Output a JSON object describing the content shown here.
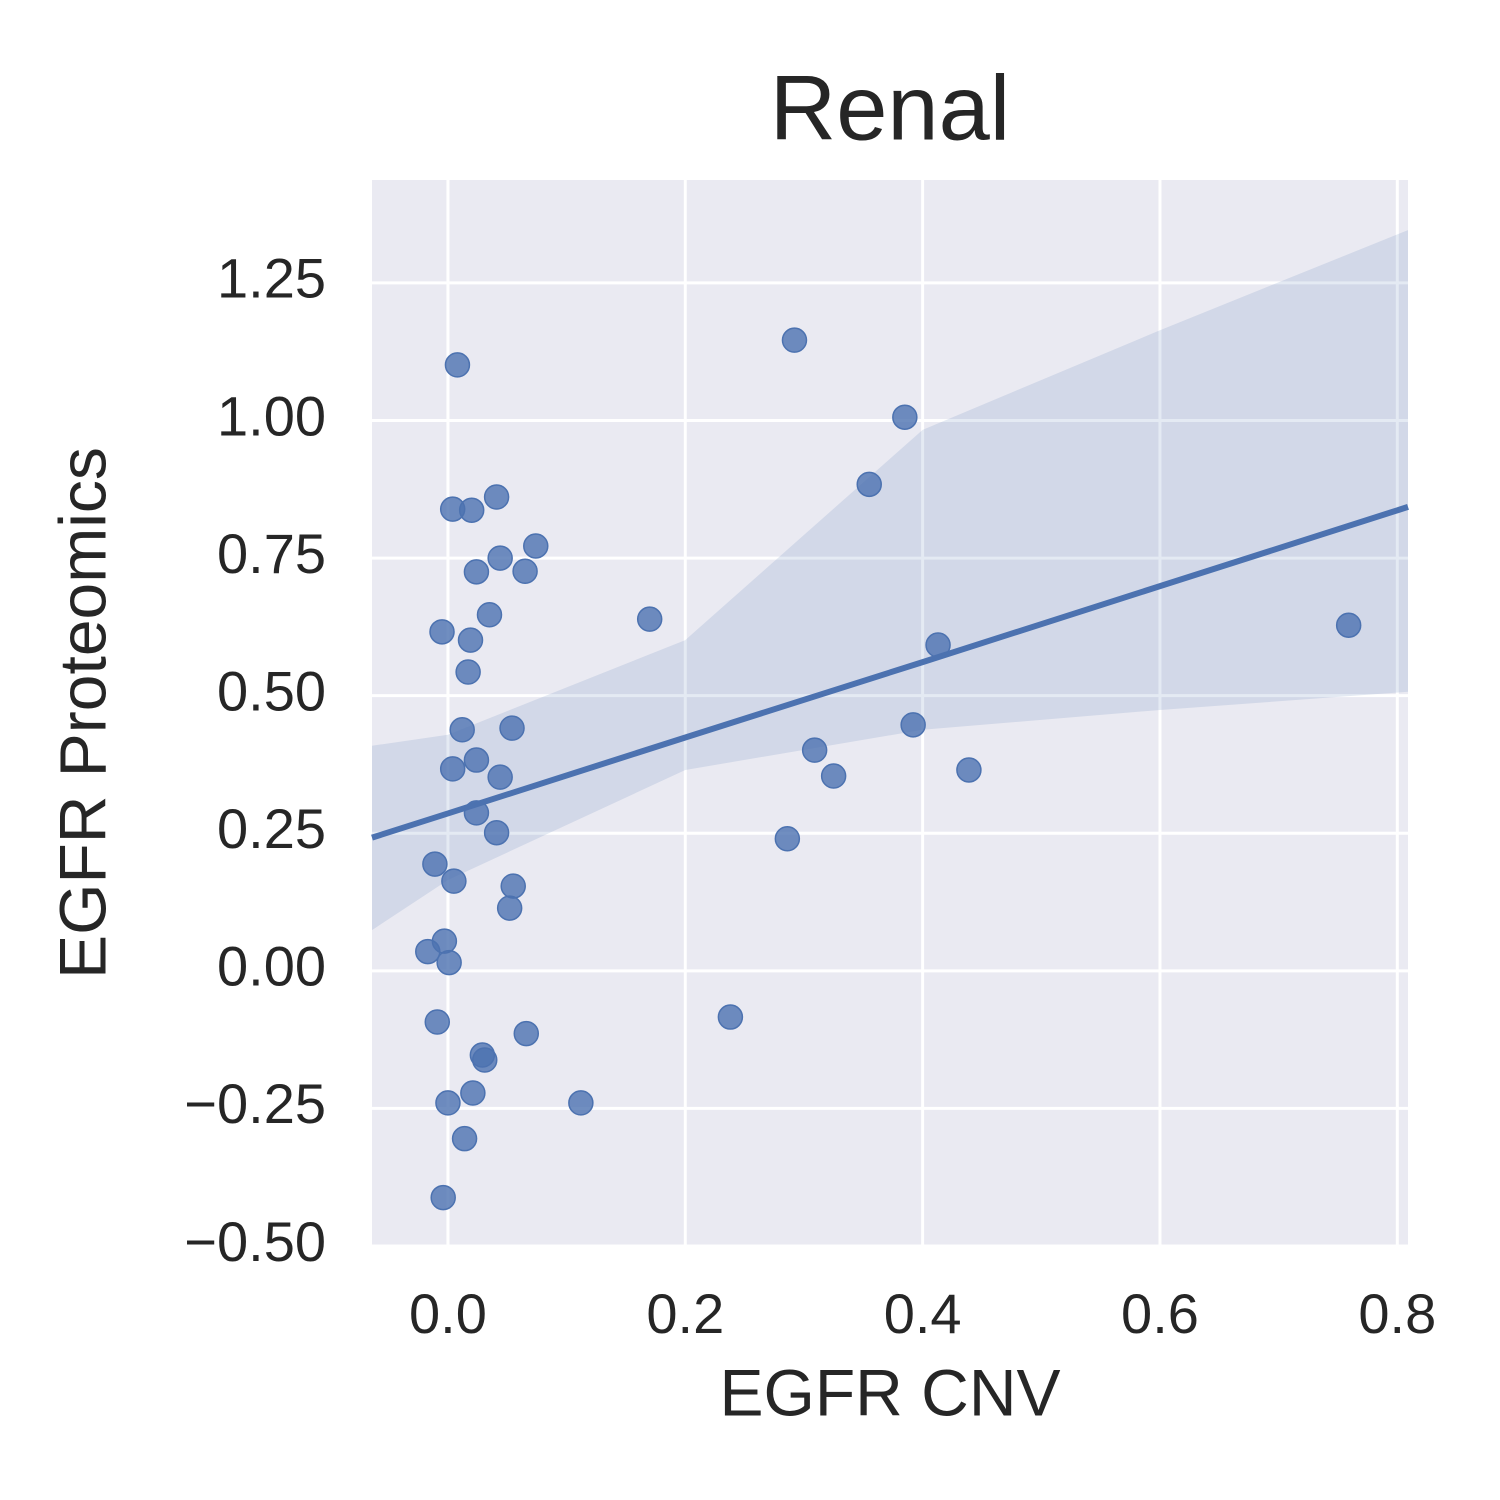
{
  "chart_data": {
    "type": "scatter",
    "title": "Renal",
    "x_label": "EGFR CNV",
    "y_label": "EGFR Proteomics",
    "color": "#4c72b0",
    "grid": true,
    "xlim": [
      -0.064,
      0.809
    ],
    "ylim": [
      -0.5,
      1.437
    ],
    "xticks": [
      {
        "value": 0,
        "label": "0.0"
      },
      0.2,
      0.4,
      0.6,
      0.8
    ],
    "yticks": [
      {
        "value": -0.5,
        "label": "−0.50"
      },
      {
        "value": -0.25,
        "label": "−0.25"
      },
      {
        "value": 0,
        "label": "0.00"
      },
      0.25,
      {
        "value": 0.5,
        "label": "0.50"
      },
      0.75,
      {
        "value": 1,
        "label": "1.00"
      },
      1.25
    ],
    "x": [
      0.008,
      0.292,
      0.385,
      0.355,
      0.004,
      0.02,
      0.041,
      0.044,
      0.074,
      0.024,
      0.065,
      0.035,
      0.17,
      0.759,
      -0.005,
      0.019,
      0.017,
      0.413,
      0.012,
      0.054,
      0.392,
      0.309,
      0.024,
      0.004,
      0.044,
      0.325,
      0.439,
      0.024,
      0.041,
      0.286,
      -0.011,
      0.005,
      0.055,
      0.052,
      -0.003,
      -0.017,
      0.001,
      0.238,
      -0.009,
      0.066,
      0.029,
      0.031,
      0.021,
      0.0,
      0.112,
      0.014,
      -0.004
    ],
    "values": [
      1.101,
      1.146,
      1.006,
      0.884,
      0.839,
      0.837,
      0.861,
      0.75,
      0.772,
      0.725,
      0.726,
      0.647,
      0.639,
      0.628,
      0.616,
      0.601,
      0.543,
      0.592,
      0.438,
      0.441,
      0.447,
      0.401,
      0.383,
      0.367,
      0.352,
      0.354,
      0.365,
      0.287,
      0.251,
      0.24,
      0.194,
      0.163,
      0.154,
      0.114,
      0.054,
      0.035,
      0.015,
      -0.084,
      -0.093,
      -0.114,
      -0.153,
      -0.162,
      -0.222,
      -0.24,
      -0.24,
      -0.305,
      -0.412
    ],
    "regression": {
      "x": [
        -0.064,
        0,
        0.2,
        0.4,
        0.6,
        0.809
      ],
      "values": [
        0.242,
        0.286,
        0.424,
        0.561,
        0.699,
        0.843
      ],
      "lower": [
        0.074,
        0.165,
        0.365,
        0.438,
        0.474,
        0.507
      ],
      "upper": [
        0.409,
        0.429,
        0.601,
        0.983,
        1.164,
        1.346
      ]
    }
  }
}
